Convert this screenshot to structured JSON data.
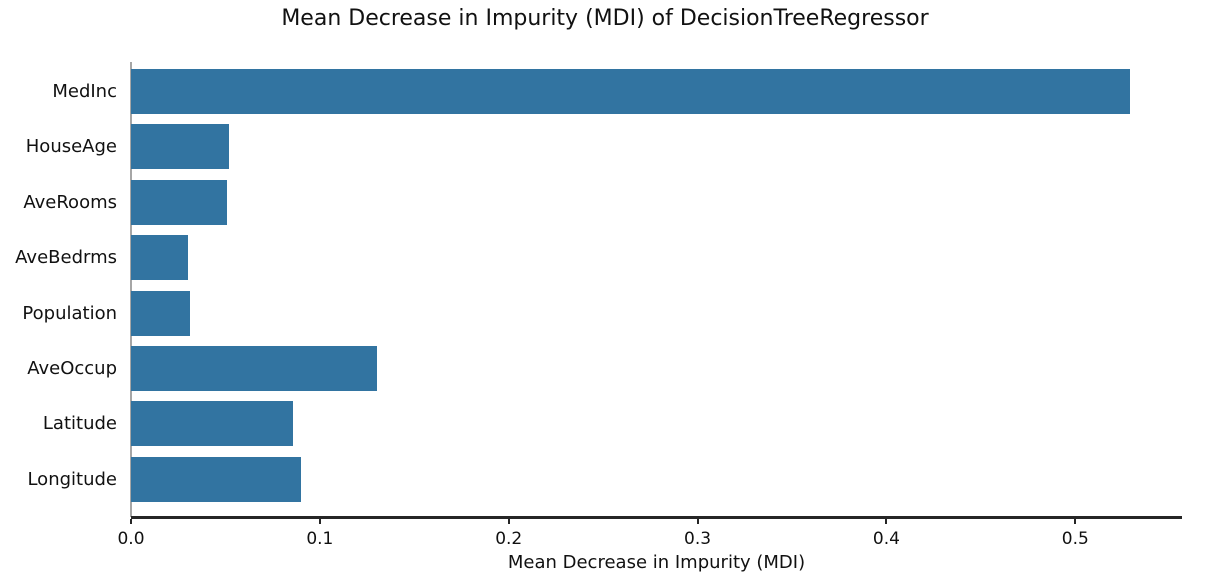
{
  "figure": {
    "background": "#ffffff"
  },
  "chart_data": {
    "type": "bar",
    "orientation": "horizontal",
    "title": "Mean Decrease in Impurity (MDI) of DecisionTreeRegressor",
    "xlabel": "Mean Decrease in Impurity (MDI)",
    "ylabel": "",
    "categories": [
      "MedInc",
      "HouseAge",
      "AveRooms",
      "AveBedrms",
      "Population",
      "AveOccup",
      "Latitude",
      "Longitude"
    ],
    "values": [
      0.529,
      0.052,
      0.051,
      0.03,
      0.031,
      0.13,
      0.086,
      0.09
    ],
    "xlim": [
      0,
      0.5565
    ],
    "xticks": [
      0.0,
      0.1,
      0.2,
      0.3,
      0.4,
      0.5
    ],
    "xtick_labels": [
      "0.0",
      "0.1",
      "0.2",
      "0.3",
      "0.4",
      "0.5"
    ],
    "grid": false,
    "legend": null,
    "colors": {
      "bar": "#3274a1",
      "bottom_spine": "#262626",
      "left_spine": "#a6a6a6",
      "text": "#111111"
    }
  }
}
